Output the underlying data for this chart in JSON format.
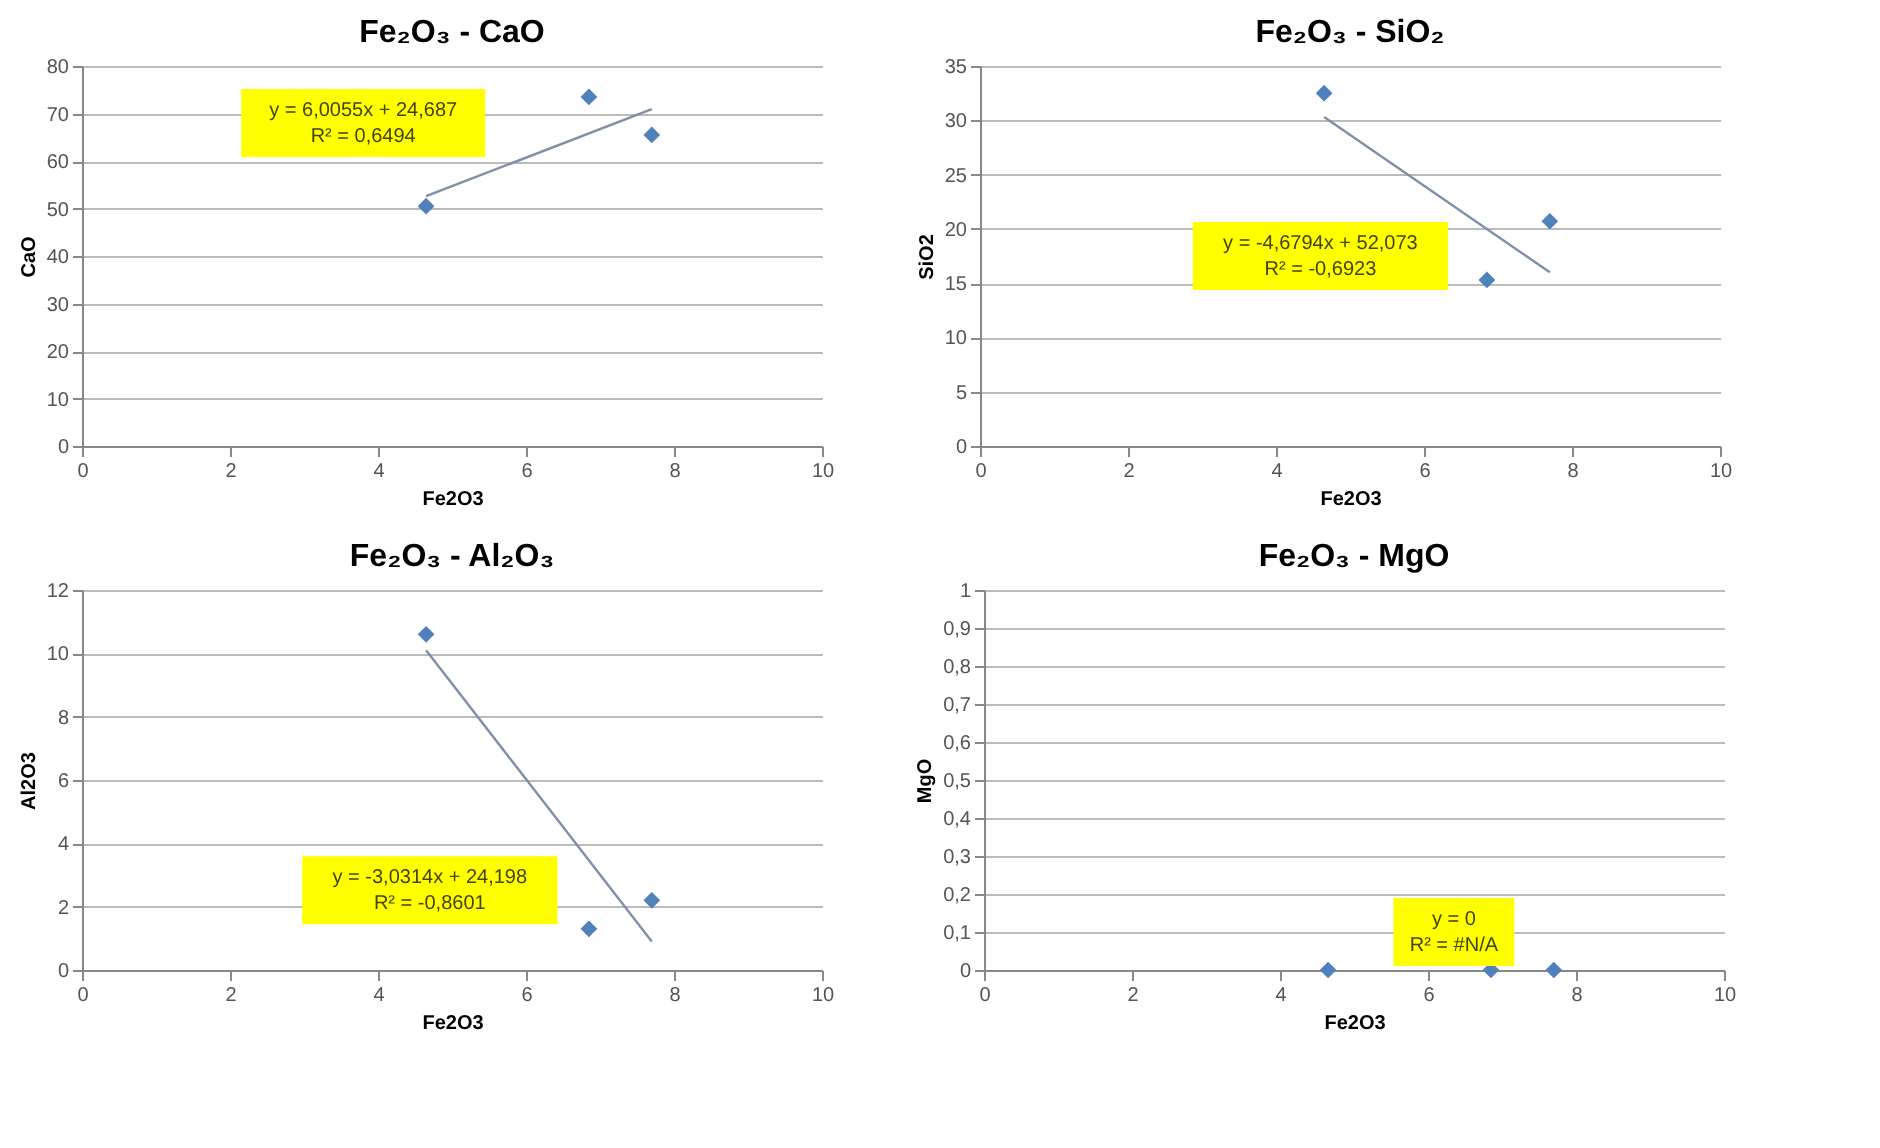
{
  "chart_data": [
    {
      "type": "scatter",
      "title": "Fe₂O₃ - CaO",
      "xlabel": "Fe2O3",
      "ylabel": "CaO",
      "marker": "diamond",
      "grid": "y",
      "xlim": [
        0,
        10
      ],
      "xticks": [
        0,
        2,
        4,
        6,
        8,
        10
      ],
      "ylim": [
        0,
        80
      ],
      "yticks": [
        0,
        10,
        20,
        30,
        40,
        50,
        60,
        70,
        80
      ],
      "series": [
        {
          "color": "#4f81bd",
          "x": [
            4.65,
            6.85,
            7.7
          ],
          "values": [
            50.5,
            73.5,
            65.5
          ]
        },
        {
          "type": "line",
          "marker": "none",
          "color": "#7f8fa6",
          "x": [
            4.65,
            7.7
          ],
          "values": [
            52.6,
            70.9
          ]
        }
      ],
      "annotations": [
        "y = 6,0055x + 24,687\nR² = 0,6494"
      ]
    },
    {
      "type": "scatter",
      "title": "Fe₂O₃ - SiO₂",
      "xlabel": "Fe2O3",
      "ylabel": "SiO2",
      "marker": "diamond",
      "grid": "y",
      "xlim": [
        0,
        10
      ],
      "xticks": [
        0,
        2,
        4,
        6,
        8,
        10
      ],
      "ylim": [
        0,
        35
      ],
      "yticks": [
        0,
        5,
        10,
        15,
        20,
        25,
        30,
        35
      ],
      "series": [
        {
          "color": "#4f81bd",
          "x": [
            4.65,
            6.85,
            7.7
          ],
          "values": [
            32.5,
            15.3,
            20.7
          ]
        },
        {
          "type": "line",
          "marker": "none",
          "color": "#7f8fa6",
          "x": [
            4.65,
            7.7
          ],
          "values": [
            30.3,
            16.0
          ]
        }
      ],
      "annotations": [
        "y = -4,6794x + 52,073\nR² = -0,6923"
      ]
    },
    {
      "type": "scatter",
      "title": "Fe₂O₃ - Al₂O₃",
      "xlabel": "Fe2O3",
      "ylabel": "Al2O3",
      "marker": "diamond",
      "grid": "y",
      "xlim": [
        0,
        10
      ],
      "xticks": [
        0,
        2,
        4,
        6,
        8,
        10
      ],
      "ylim": [
        0,
        12
      ],
      "yticks": [
        0,
        2,
        4,
        6,
        8,
        10,
        12
      ],
      "series": [
        {
          "color": "#4f81bd",
          "x": [
            4.65,
            6.85,
            7.7
          ],
          "values": [
            10.6,
            1.3,
            2.2
          ]
        },
        {
          "type": "line",
          "marker": "none",
          "color": "#7f8fa6",
          "x": [
            4.65,
            7.7
          ],
          "values": [
            10.1,
            0.9
          ]
        }
      ],
      "annotations": [
        "y = -3,0314x + 24,198\nR² = -0,8601"
      ]
    },
    {
      "type": "scatter",
      "title": "Fe₂O₃ - MgO",
      "xlabel": "Fe2O3",
      "ylabel": "MgO",
      "marker": "diamond",
      "grid": "y",
      "xlim": [
        0,
        10
      ],
      "xticks": [
        0,
        2,
        4,
        6,
        8,
        10
      ],
      "ylim": [
        0,
        1
      ],
      "yticks": [
        0,
        {
          "value": 0.1,
          "label": "0,1"
        },
        {
          "value": 0.2,
          "label": "0,2"
        },
        {
          "value": 0.3,
          "label": "0,3"
        },
        {
          "value": 0.4,
          "label": "0,4"
        },
        {
          "value": 0.5,
          "label": "0,5"
        },
        {
          "value": 0.6,
          "label": "0,6"
        },
        {
          "value": 0.7,
          "label": "0,7"
        },
        {
          "value": 0.8,
          "label": "0,8"
        },
        {
          "value": 0.9,
          "label": "0,9"
        },
        1
      ],
      "series": [
        {
          "color": "#4f81bd",
          "x": [
            4.65,
            6.85,
            7.7
          ],
          "values": [
            0,
            0,
            0
          ]
        }
      ],
      "annotations": [
        "y = 0\nR² = #N/A"
      ]
    }
  ]
}
